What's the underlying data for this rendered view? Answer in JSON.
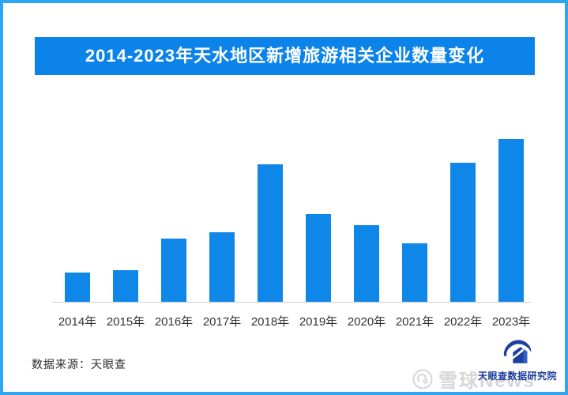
{
  "title": "2014-2023年天水地区新增旅游相关企业数量变化",
  "footer": {
    "source": "数据来源：天眼查"
  },
  "watermarks": {
    "xueqiu": "雪球News",
    "tianyancha": "天眼查数据研究院"
  },
  "colors": {
    "frame_border": "#2fa5f3",
    "banner_bg": "#0c83e8",
    "bar_blue": "#0f87e8",
    "axis_line": "#cccccc",
    "label_text": "#333333",
    "watermark_gray": "#d7d7d7",
    "tianyancha_navy": "#1e3f9d"
  },
  "chart_data": {
    "type": "bar",
    "title": "2014-2023年天水地区新增旅游相关企业数量变化",
    "categories": [
      "2014年",
      "2015年",
      "2016年",
      "2017年",
      "2018年",
      "2019年",
      "2020年",
      "2021年",
      "2022年",
      "2023年"
    ],
    "values": [
      37,
      40,
      80,
      88,
      174,
      111,
      97,
      74,
      176,
      206
    ],
    "value_note": "No y-axis or data labels shown in source image; values are relative units estimated from bar heights (pixels).",
    "xlabel": "",
    "ylabel": "",
    "ylim": [
      0,
      222
    ],
    "grid": false,
    "legend": false,
    "bar_color": "#0f87e8"
  }
}
